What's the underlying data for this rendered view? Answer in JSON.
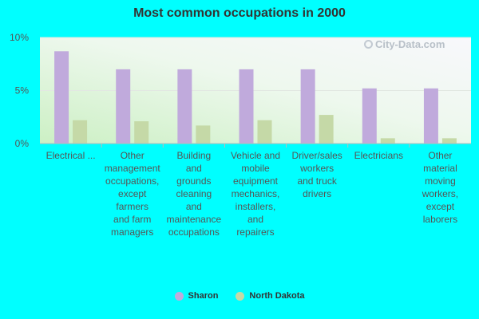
{
  "chart_data": {
    "type": "bar",
    "title": "Most common occupations in 2000",
    "categories": [
      "Electrical ...",
      "Other management occupations, except farmers and farm managers",
      "Building and grounds cleaning and maintenance occupations",
      "Vehicle and mobile equipment mechanics, installers, and repairers",
      "Driver/sales workers and truck drivers",
      "Electricians",
      "Other material moving workers, except laborers"
    ],
    "category_lines": [
      [
        "Electrical ..."
      ],
      [
        "Other",
        "management",
        "occupations,",
        "except",
        "farmers",
        "and farm",
        "managers"
      ],
      [
        "Building",
        "and",
        "grounds",
        "cleaning",
        "and",
        "maintenance",
        "occupations"
      ],
      [
        "Vehicle and",
        "mobile",
        "equipment",
        "mechanics,",
        "installers,",
        "and",
        "repairers"
      ],
      [
        "Driver/sales",
        "workers",
        "and truck",
        "drivers"
      ],
      [
        "Electricians"
      ],
      [
        "Other",
        "material",
        "moving",
        "workers,",
        "except",
        "laborers"
      ]
    ],
    "series": [
      {
        "name": "Sharon",
        "color": "#c0aadc",
        "values": [
          8.7,
          7.0,
          7.0,
          7.0,
          7.0,
          5.2,
          5.2
        ]
      },
      {
        "name": "North Dakota",
        "color": "#c5d9a7",
        "values": [
          2.2,
          2.1,
          1.7,
          2.2,
          2.7,
          0.5,
          0.5
        ]
      }
    ],
    "ylim": [
      0,
      10
    ],
    "yticks": [
      0,
      5,
      10
    ],
    "ytick_labels": [
      "0%",
      "5%",
      "10%"
    ],
    "legend_position": "bottom",
    "grid": true
  },
  "watermark": "City-Data.com"
}
